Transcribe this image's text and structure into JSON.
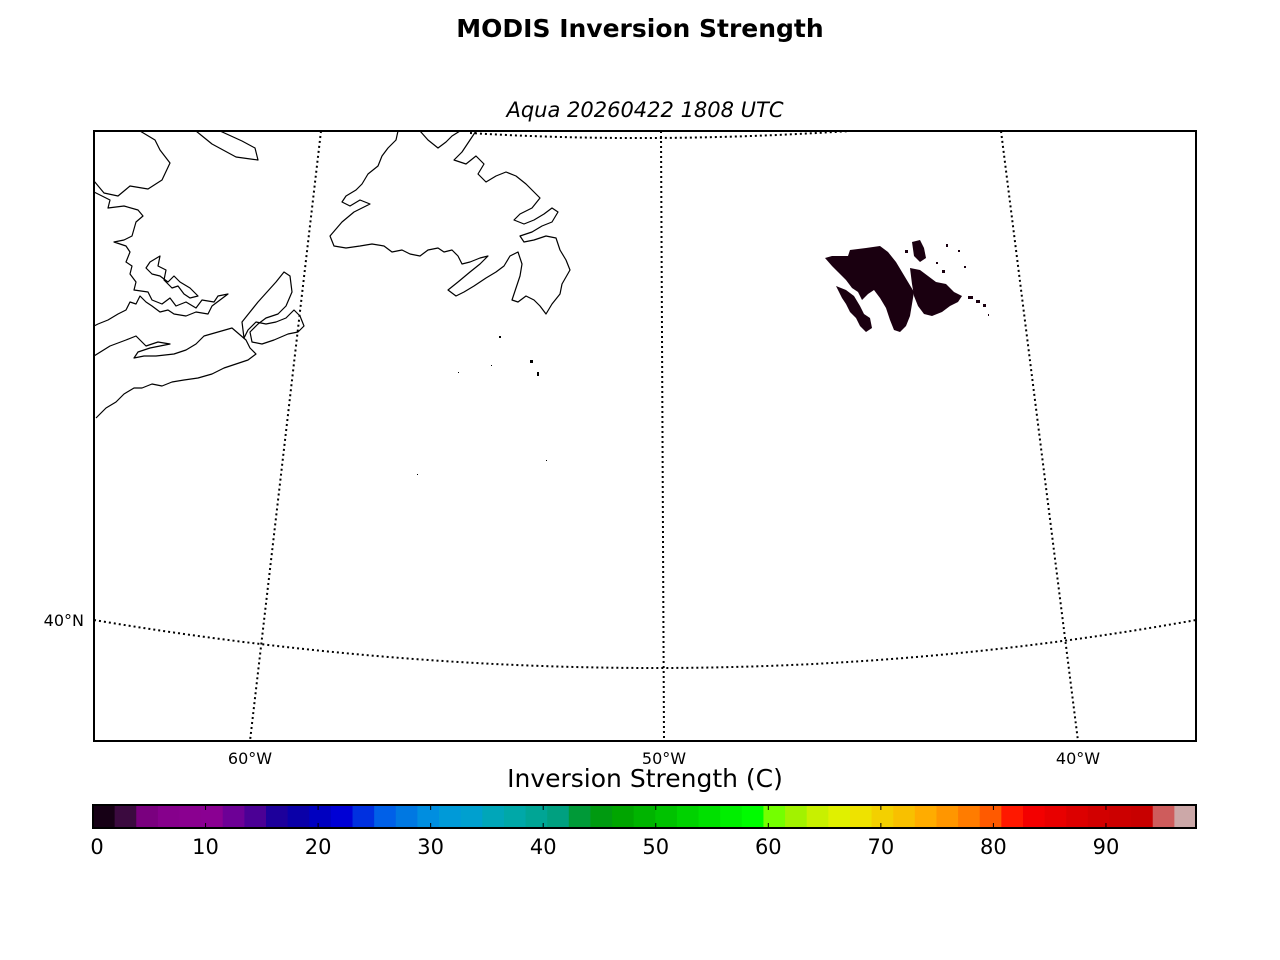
{
  "title": "MODIS Inversion Strength",
  "subtitle": "Aqua 20260422 1808 UTC",
  "graticule": {
    "latitude_labels": [
      "40°N"
    ],
    "longitude_labels": [
      "60°W",
      "50°W",
      "40°W"
    ]
  },
  "colorbar": {
    "label": "Inversion Strength (C)",
    "ticks": [
      "0",
      "10",
      "20",
      "30",
      "40",
      "50",
      "60",
      "70",
      "80",
      "90"
    ],
    "colors": [
      "#160015",
      "#3b0a3f",
      "#7a007f",
      "#86008c",
      "#8a0090",
      "#8a0092",
      "#6d0096",
      "#4b0095",
      "#1d009b",
      "#0a00a8",
      "#0000c0",
      "#0000d5",
      "#0030e0",
      "#0060e8",
      "#0078e2",
      "#008ee0",
      "#009ad8",
      "#00a0cf",
      "#00a6b9",
      "#00a8a8",
      "#00a595",
      "#00a080",
      "#009a38",
      "#009a10",
      "#00a500",
      "#00b400",
      "#00c200",
      "#00d200",
      "#00e000",
      "#00ef00",
      "#00fc00",
      "#74ff00",
      "#a2f200",
      "#c8f000",
      "#e0f000",
      "#eee200",
      "#f3d000",
      "#f8c000",
      "#ffac00",
      "#ff9600",
      "#ff7c00",
      "#ff5a00",
      "#ff1800",
      "#f30000",
      "#e80000",
      "#dc0000",
      "#d20000",
      "#cc0000",
      "#c80000",
      "#ce5c5c",
      "#cca8a8"
    ]
  },
  "data_color": "#1a0010"
}
